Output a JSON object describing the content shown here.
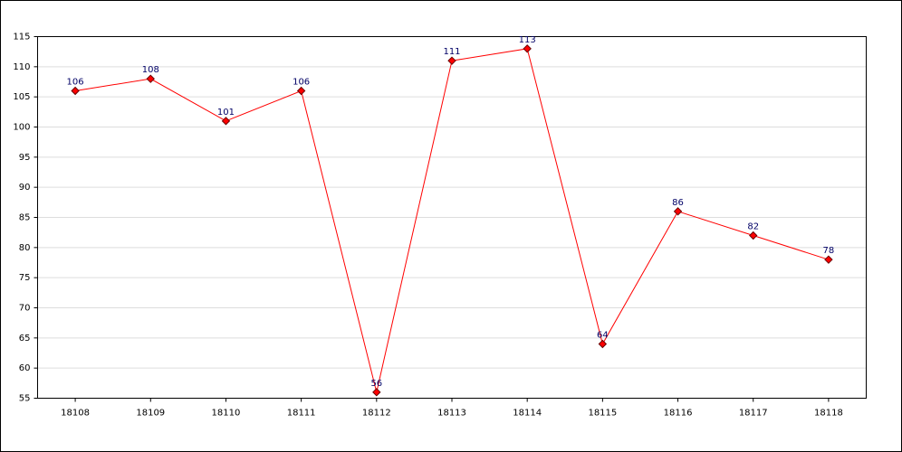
{
  "chart_data": {
    "type": "line",
    "categories": [
      "18108",
      "18109",
      "18110",
      "18111",
      "18112",
      "18113",
      "18114",
      "18115",
      "18116",
      "18117",
      "18118"
    ],
    "series": [
      {
        "color": "#ff0000",
        "values": [
          106,
          108,
          101,
          106,
          56,
          111,
          113,
          64,
          86,
          82,
          78
        ]
      }
    ],
    "ylim": [
      55,
      115
    ],
    "yticks": [
      55,
      60,
      65,
      70,
      75,
      80,
      85,
      90,
      95,
      100,
      105,
      110,
      115
    ],
    "grid": true
  }
}
